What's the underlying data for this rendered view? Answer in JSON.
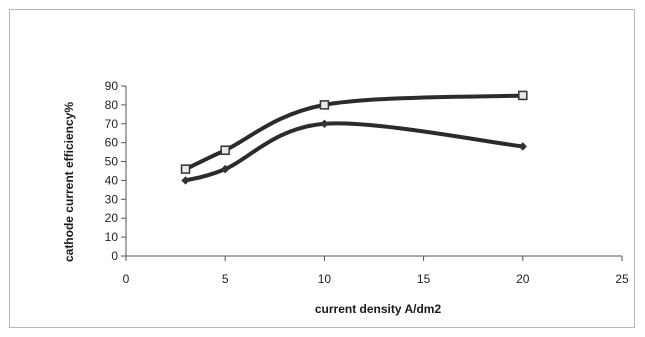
{
  "chart_data": {
    "type": "line",
    "title": "",
    "xlabel": "current density A/dm2",
    "ylabel": "cathode current efficiency%",
    "xlim": [
      0,
      25
    ],
    "ylim": [
      0,
      90
    ],
    "xticks": [
      0,
      5,
      10,
      15,
      20,
      25
    ],
    "yticks": [
      0,
      10,
      20,
      30,
      40,
      50,
      60,
      70,
      80,
      90
    ],
    "grid": false,
    "legend": "none",
    "smooth": true,
    "series": [
      {
        "marker": "square",
        "color": "#2b2b2b",
        "x": [
          3,
          5,
          10,
          20
        ],
        "y": [
          46,
          56,
          80,
          85
        ]
      },
      {
        "marker": "diamond",
        "color": "#2b2b2b",
        "x": [
          3,
          5,
          10,
          20
        ],
        "y": [
          40,
          46,
          70,
          58
        ]
      }
    ]
  }
}
